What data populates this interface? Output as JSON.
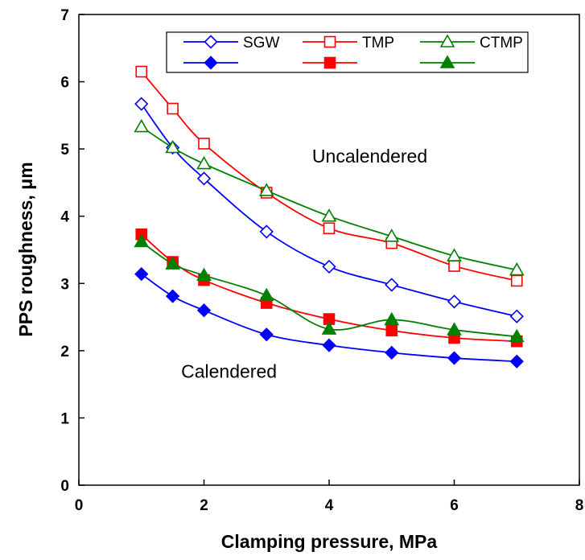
{
  "chart_data": {
    "type": "line",
    "xlabel": "Clamping pressure, MPa",
    "ylabel": "PPS roughness, μm",
    "xlim": [
      0,
      8
    ],
    "ylim": [
      0,
      7
    ],
    "xticks": [
      "0",
      "2",
      "4",
      "6",
      "8"
    ],
    "yticks": [
      "0",
      "1",
      "2",
      "3",
      "4",
      "5",
      "6",
      "7"
    ],
    "legend_position": "top-right",
    "grid": false,
    "x": [
      1,
      1.5,
      2,
      3,
      4,
      5,
      6,
      7
    ],
    "series": [
      {
        "name": "SGW",
        "marker": "diamond",
        "filled": false,
        "color": "#0000ff",
        "values": [
          5.67,
          5.02,
          4.56,
          3.77,
          3.25,
          2.98,
          2.73,
          2.51
        ]
      },
      {
        "name": "TMP",
        "marker": "square",
        "filled": false,
        "color": "#ff0000",
        "values": [
          6.15,
          5.6,
          5.08,
          4.35,
          3.82,
          3.6,
          3.26,
          3.04
        ]
      },
      {
        "name": "CTMP",
        "marker": "triangle",
        "filled": false,
        "color": "#008000",
        "values": [
          5.33,
          5.02,
          4.78,
          4.38,
          4.0,
          3.7,
          3.41,
          3.2
        ]
      },
      {
        "name": "",
        "marker": "diamond",
        "filled": true,
        "color": "#0000ff",
        "values": [
          3.14,
          2.81,
          2.6,
          2.24,
          2.08,
          1.97,
          1.89,
          1.84
        ]
      },
      {
        "name": "",
        "marker": "square",
        "filled": true,
        "color": "#ff0000",
        "values": [
          3.73,
          3.32,
          3.05,
          2.71,
          2.47,
          2.3,
          2.19,
          2.14
        ]
      },
      {
        "name": "",
        "marker": "triangle",
        "filled": true,
        "color": "#008000",
        "values": [
          3.62,
          3.29,
          3.12,
          2.82,
          2.32,
          2.46,
          2.31,
          2.21
        ]
      }
    ],
    "annotations": [
      {
        "text": "Uncalendered",
        "x": 4.65,
        "y": 4.8
      },
      {
        "text": "Calendered",
        "x": 2.4,
        "y": 1.6
      }
    ]
  }
}
